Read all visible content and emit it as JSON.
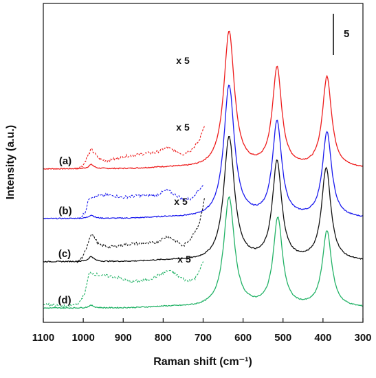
{
  "chart_data": {
    "type": "line",
    "xlabel": "Raman shift (cm⁻¹)",
    "ylabel": "Intensity (a.u.)",
    "x_reversed": true,
    "xlim": [
      1100,
      300
    ],
    "x_ticks": [
      "1100",
      "1000",
      "900",
      "800",
      "700",
      "600",
      "500",
      "400",
      "300"
    ],
    "y_ticks_shown": false,
    "grid": false,
    "legend": "none",
    "scale_bar_label": "5",
    "series": [
      {
        "name": "(a)",
        "color": "#ee1c1c",
        "offset": 17.5,
        "peaks": [
          {
            "x": 980,
            "h": 0.5,
            "w": 8
          },
          {
            "x": 635,
            "h": 16.5,
            "w": 16
          },
          {
            "x": 515,
            "h": 12,
            "w": 14
          },
          {
            "x": 390,
            "h": 11,
            "w": 14
          }
        ],
        "magnified": {
          "label": "x 5",
          "factor": 5,
          "x_range": [
            1020,
            695
          ],
          "shape": [
            [
              1020,
              0
            ],
            [
              1000,
              0.5
            ],
            [
              980,
              2.4
            ],
            [
              960,
              1.2
            ],
            [
              940,
              1.0
            ],
            [
              900,
              1.5
            ],
            [
              860,
              1.8
            ],
            [
              820,
              2.0
            ],
            [
              790,
              2.6
            ],
            [
              770,
              2.2
            ],
            [
              750,
              1.8
            ],
            [
              730,
              2.3
            ],
            [
              710,
              3.4
            ],
            [
              695,
              5.6
            ]
          ]
        }
      },
      {
        "name": "(b)",
        "color": "#1a1aee",
        "offset": 11.5,
        "peaks": [
          {
            "x": 980,
            "h": 0.4,
            "w": 8
          },
          {
            "x": 635,
            "h": 16,
            "w": 16
          },
          {
            "x": 515,
            "h": 11.5,
            "w": 14
          },
          {
            "x": 390,
            "h": 10.3,
            "w": 14
          }
        ],
        "magnified": {
          "label": "x 5",
          "factor": 5,
          "x_range": [
            1010,
            700
          ],
          "shape": [
            [
              1010,
              0
            ],
            [
              995,
              0.8
            ],
            [
              985,
              2.6
            ],
            [
              970,
              2.7
            ],
            [
              940,
              2.9
            ],
            [
              900,
              2.6
            ],
            [
              860,
              2.8
            ],
            [
              820,
              2.8
            ],
            [
              790,
              3.5
            ],
            [
              770,
              2.9
            ],
            [
              750,
              2.4
            ],
            [
              730,
              2.4
            ],
            [
              715,
              3.3
            ],
            [
              700,
              4.0
            ]
          ]
        }
      },
      {
        "name": "(c)",
        "color": "#111111",
        "offset": 6.3,
        "peaks": [
          {
            "x": 980,
            "h": 0.6,
            "w": 8
          },
          {
            "x": 635,
            "h": 15,
            "w": 16
          },
          {
            "x": 515,
            "h": 11.9,
            "w": 14
          },
          {
            "x": 392,
            "h": 11.2,
            "w": 14
          }
        ],
        "magnified": {
          "label": "x 5",
          "factor": 5,
          "x_range": [
            1015,
            695
          ],
          "shape": [
            [
              1015,
              0
            ],
            [
              1000,
              0.6
            ],
            [
              980,
              3.5
            ],
            [
              960,
              2.0
            ],
            [
              930,
              1.8
            ],
            [
              880,
              2.2
            ],
            [
              860,
              2.2
            ],
            [
              820,
              2.3
            ],
            [
              790,
              3.1
            ],
            [
              770,
              2.6
            ],
            [
              750,
              1.9
            ],
            [
              730,
              2.9
            ],
            [
              710,
              4.6
            ],
            [
              695,
              7.9
            ]
          ]
        }
      },
      {
        "name": "(d)",
        "color": "#22b266",
        "offset": 0.7,
        "peaks": [
          {
            "x": 980,
            "h": 0.3,
            "w": 8
          },
          {
            "x": 635,
            "h": 13.3,
            "w": 16
          },
          {
            "x": 513,
            "h": 10.7,
            "w": 14
          },
          {
            "x": 390,
            "h": 9.2,
            "w": 14
          }
        ],
        "magnified": {
          "label": "x 5",
          "factor": 5,
          "x_range": [
            1100,
            700
          ],
          "shape": [
            [
              1100,
              0.5
            ],
            [
              1040,
              0.2
            ],
            [
              1010,
              0.6
            ],
            [
              995,
              2.0
            ],
            [
              985,
              4.3
            ],
            [
              960,
              4.0
            ],
            [
              920,
              3.8
            ],
            [
              880,
              3.2
            ],
            [
              840,
              3.4
            ],
            [
              810,
              4.0
            ],
            [
              785,
              4.6
            ],
            [
              760,
              3.8
            ],
            [
              740,
              3.3
            ],
            [
              720,
              3.6
            ],
            [
              700,
              5.5
            ]
          ]
        }
      }
    ]
  }
}
